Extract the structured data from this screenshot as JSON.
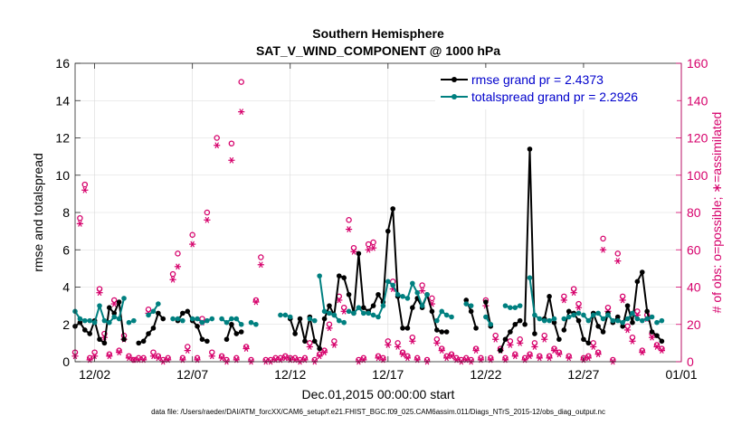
{
  "chart_data": {
    "type": "line",
    "title": [
      "Southern Hemisphere",
      "SAT_V_WIND_COMPONENT @ 1000 hPa"
    ],
    "xlabel": "Dec.01,2015 00:00:00 start",
    "ylabel": "rmse and totalspread",
    "y2label": "# of obs: o=possible; ∗=assimilated",
    "xlim": [
      0,
      31
    ],
    "ylim": [
      0,
      16
    ],
    "y2lim": [
      0,
      160
    ],
    "x_ticks": [
      1,
      6,
      11,
      16,
      21,
      26,
      31
    ],
    "x_tick_labels": [
      "12/02",
      "12/07",
      "12/12",
      "12/17",
      "12/22",
      "12/27",
      "01/01"
    ],
    "y_ticks": [
      0,
      2,
      4,
      6,
      8,
      10,
      12,
      14,
      16
    ],
    "y2_ticks": [
      0,
      20,
      40,
      60,
      80,
      100,
      120,
      140,
      160
    ],
    "grid": true,
    "legend_position": "top-right",
    "footnote": "data file: /Users/raeder/DAI/ATM_forcXX/CAM6_setup/f.e21.FHIST_BGC.f09_025.CAM6assim.011/Diags_NTrS_2015-12/obs_diag_output.nc",
    "series": [
      {
        "name": "rmse grand pr = 2.4373",
        "color": "#000000",
        "axis": "left",
        "segments": [
          {
            "x": [
              0.0,
              0.25,
              0.5,
              0.75,
              1.0,
              1.25,
              1.5,
              1.75,
              2.0,
              2.25,
              2.5
            ],
            "y": [
              1.9,
              2.1,
              1.7,
              1.5,
              2.2,
              1.2,
              1.0,
              2.9,
              2.6,
              3.2,
              1.2
            ]
          },
          {
            "x": [
              3.25,
              3.5,
              3.75,
              4.0,
              4.25,
              4.5
            ],
            "y": [
              1.0,
              1.1,
              1.5,
              1.8,
              2.6,
              2.3
            ]
          },
          {
            "x": [
              5.25,
              5.5,
              5.75,
              6.0,
              6.25,
              6.5,
              6.75
            ],
            "y": [
              2.2,
              2.6,
              2.7,
              2.2,
              1.9,
              1.2,
              1.1
            ]
          },
          {
            "x": [
              7.75,
              8.0,
              8.25,
              8.5
            ],
            "y": [
              1.2,
              2.0,
              1.5,
              1.6
            ]
          },
          {
            "x": [
              11.0,
              11.25,
              11.5,
              11.75,
              12.0,
              12.25,
              12.5,
              12.75,
              13.0,
              13.25,
              13.5,
              13.75,
              14.0,
              14.25,
              14.5,
              14.75,
              15.0,
              15.25,
              15.5,
              15.75,
              16.0,
              16.25,
              16.5,
              16.75,
              17.0,
              17.25,
              17.5,
              17.75,
              18.0,
              18.25,
              18.5,
              18.75,
              19.0
            ],
            "y": [
              2.3,
              1.5,
              2.3,
              1.1,
              2.4,
              1.1,
              0.7,
              2.3,
              3.0,
              2.5,
              4.6,
              4.5,
              3.6,
              2.6,
              5.8,
              2.9,
              2.7,
              3.0,
              3.6,
              3.2,
              7.0,
              8.2,
              3.5,
              1.8,
              1.8,
              2.9,
              3.4,
              2.9,
              3.6,
              2.7,
              1.7,
              1.6,
              1.6
            ]
          },
          {
            "x": [
              20.0,
              20.25,
              20.5
            ],
            "y": [
              3.3,
              2.7,
              1.8
            ]
          },
          {
            "x": [
              21.0,
              21.25
            ],
            "y": [
              3.2,
              1.9
            ]
          },
          {
            "x": [
              21.75,
              22.0,
              22.25,
              22.5,
              22.75
            ],
            "y": [
              0.6,
              1.2,
              1.6,
              2.0,
              2.2
            ]
          },
          {
            "x": [
              23.0,
              23.25,
              23.5
            ],
            "y": [
              2.0,
              11.4,
              1.5
            ]
          },
          {
            "x": [
              24.0,
              24.25,
              24.5,
              24.75
            ],
            "y": [
              2.3,
              3.5,
              2.1,
              1.2
            ]
          },
          {
            "x": [
              25.0,
              25.25,
              25.5,
              25.75,
              26.0,
              26.25,
              26.5,
              26.75,
              27.0,
              27.25,
              27.5,
              27.75,
              28.0,
              28.25,
              28.5,
              28.75,
              29.0,
              29.25,
              29.5,
              29.75,
              30.0
            ],
            "y": [
              1.7,
              2.7,
              2.6,
              2.2,
              1.2,
              1.0,
              2.6,
              1.9,
              1.6,
              2.6,
              2.1,
              2.4,
              1.9,
              3.0,
              2.1,
              4.3,
              4.8,
              2.7,
              1.6,
              1.4,
              1.1
            ]
          }
        ]
      },
      {
        "name": "totalspread grand pr = 2.2926",
        "color": "#008080",
        "axis": "left",
        "segments": [
          {
            "x": [
              0.0,
              0.25,
              0.5,
              0.75,
              1.0,
              1.25,
              1.5,
              1.75,
              2.0,
              2.25,
              2.5
            ],
            "y": [
              2.7,
              2.3,
              2.2,
              2.2,
              2.1,
              3.0,
              2.2,
              2.1,
              2.4,
              2.3,
              3.4
            ]
          },
          {
            "x": [
              2.75,
              3.0
            ],
            "y": [
              2.1,
              2.2
            ]
          },
          {
            "x": [
              3.75,
              4.0,
              4.25
            ],
            "y": [
              2.5,
              2.7,
              3.1
            ]
          },
          {
            "x": [
              5.0,
              5.25,
              5.5
            ],
            "y": [
              2.3,
              2.3,
              2.2
            ]
          },
          {
            "x": [
              6.0,
              6.25,
              6.5,
              6.75,
              7.0
            ],
            "y": [
              2.3,
              2.3,
              2.1,
              2.2,
              2.3
            ]
          },
          {
            "x": [
              7.5,
              7.75,
              8.0,
              8.25,
              8.5
            ],
            "y": [
              2.3,
              2.1,
              2.3,
              2.3,
              2.0
            ]
          },
          {
            "x": [
              9.0,
              9.25
            ],
            "y": [
              2.1,
              2.0
            ]
          },
          {
            "x": [
              10.5,
              10.75,
              11.0
            ],
            "y": [
              2.5,
              2.5,
              2.4
            ]
          },
          {
            "x": [
              12.0,
              12.25
            ],
            "y": [
              2.3,
              2.2
            ]
          },
          {
            "x": [
              12.5,
              12.75,
              13.0,
              13.25,
              13.5,
              13.75
            ],
            "y": [
              4.6,
              2.7,
              2.6,
              2.5,
              2.2,
              2.1
            ]
          },
          {
            "x": [
              14.0,
              14.25,
              14.5,
              14.75,
              15.0,
              15.25,
              15.5,
              15.75,
              16.0,
              16.25,
              16.5,
              16.75,
              17.0,
              17.25,
              17.5,
              17.75,
              18.0
            ],
            "y": [
              2.7,
              2.6,
              2.9,
              2.6,
              2.6,
              2.5,
              2.4,
              3.0,
              4.3,
              4.1,
              3.6,
              3.5,
              3.4,
              4.2,
              3.7,
              3.0,
              3.6
            ]
          },
          {
            "x": [
              18.5,
              18.75,
              19.0,
              19.25
            ],
            "y": [
              2.2,
              2.7,
              2.5,
              2.4
            ]
          },
          {
            "x": [
              20.0,
              20.25
            ],
            "y": [
              3.1,
              3.0
            ]
          },
          {
            "x": [
              21.0,
              21.25
            ],
            "y": [
              2.4,
              2.0
            ]
          },
          {
            "x": [
              22.0,
              22.25,
              22.5,
              22.75
            ],
            "y": [
              3.0,
              2.9,
              2.9,
              3.0
            ]
          },
          {
            "x": [
              23.25,
              23.5,
              23.75,
              24.0
            ],
            "y": [
              4.5,
              2.5,
              2.3,
              2.2
            ]
          },
          {
            "x": [
              24.25,
              24.5
            ],
            "y": [
              2.2,
              2.3
            ]
          },
          {
            "x": [
              25.0,
              25.25,
              25.5,
              25.75
            ],
            "y": [
              2.3,
              2.4,
              2.5,
              2.6
            ]
          },
          {
            "x": [
              26.0,
              26.25,
              26.5,
              26.75,
              27.0,
              27.25,
              27.5,
              27.75,
              28.0,
              28.25,
              28.5,
              28.75,
              29.0,
              29.25,
              29.5
            ],
            "y": [
              2.5,
              2.2,
              2.5,
              2.6,
              2.3,
              2.5,
              2.2,
              2.2,
              2.1,
              2.3,
              2.6,
              2.3,
              2.2,
              2.3,
              2.4
            ]
          },
          {
            "x": [
              29.75,
              30.0
            ],
            "y": [
              2.1,
              2.2
            ]
          }
        ]
      },
      {
        "name": "obs possible",
        "color": "#d6006b",
        "axis": "right",
        "marker": "circle",
        "x": [
          0.0,
          0.25,
          0.5,
          0.75,
          1.0,
          1.25,
          1.5,
          1.75,
          2.0,
          2.25,
          2.5,
          2.75,
          3.0,
          3.25,
          3.5,
          3.75,
          4.0,
          4.25,
          4.5,
          4.75,
          5.0,
          5.25,
          5.5,
          5.75,
          6.0,
          6.25,
          6.5,
          6.75,
          7.0,
          7.25,
          7.5,
          7.75,
          8.0,
          8.25,
          8.5,
          8.75,
          9.0,
          9.25,
          9.5,
          9.75,
          10.0,
          10.25,
          10.5,
          10.75,
          11.0,
          11.25,
          11.5,
          11.75,
          12.0,
          12.25,
          12.5,
          12.75,
          13.0,
          13.25,
          13.5,
          13.75,
          14.0,
          14.25,
          14.5,
          14.75,
          15.0,
          15.25,
          15.5,
          15.75,
          16.0,
          16.25,
          16.5,
          16.75,
          17.0,
          17.25,
          17.5,
          17.75,
          18.0,
          18.25,
          18.5,
          18.75,
          19.0,
          19.25,
          19.5,
          19.75,
          20.0,
          20.25,
          20.5,
          20.75,
          21.0,
          21.25,
          21.5,
          21.75,
          22.0,
          22.25,
          22.5,
          22.75,
          23.0,
          23.25,
          23.5,
          23.75,
          24.0,
          24.25,
          24.5,
          24.75,
          25.0,
          25.25,
          25.5,
          25.75,
          26.0,
          26.25,
          26.5,
          26.75,
          27.0,
          27.25,
          27.5,
          27.75,
          28.0,
          28.25,
          28.5,
          28.75,
          29.0,
          29.25,
          29.5,
          29.75,
          30.0
        ],
        "values": [
          5,
          77,
          95,
          2,
          5,
          39,
          15,
          4,
          33,
          6,
          14,
          3,
          1,
          2,
          2,
          28,
          5,
          3,
          1,
          2,
          47,
          58,
          2,
          8,
          68,
          2,
          23,
          80,
          5,
          120,
          3,
          1,
          117,
          2,
          150,
          8,
          1,
          33,
          56,
          1,
          1,
          2,
          2,
          3,
          2,
          2,
          1,
          2,
          10,
          1,
          4,
          6,
          20,
          11,
          35,
          29,
          76,
          61,
          1,
          2,
          63,
          64,
          3,
          2,
          11,
          43,
          10,
          5,
          3,
          13,
          2,
          41,
          1,
          34,
          12,
          7,
          3,
          4,
          2,
          1,
          2,
          1,
          7,
          2,
          33,
          2,
          14,
          7,
          2,
          11,
          4,
          12,
          2,
          4,
          10,
          3,
          14,
          3,
          7,
          5,
          35,
          3,
          39,
          31,
          2,
          3,
          10,
          5,
          66,
          29,
          1,
          58,
          35,
          19,
          13,
          27,
          6,
          25,
          15,
          9,
          7
        ]
      },
      {
        "name": "obs assimilated",
        "color": "#d6006b",
        "axis": "right",
        "marker": "asterisk",
        "x": [
          0.0,
          0.25,
          0.5,
          0.75,
          1.0,
          1.25,
          1.5,
          1.75,
          2.0,
          2.25,
          2.5,
          2.75,
          3.0,
          3.25,
          3.5,
          3.75,
          4.0,
          4.25,
          4.5,
          4.75,
          5.0,
          5.25,
          5.5,
          5.75,
          6.0,
          6.25,
          6.5,
          6.75,
          7.0,
          7.25,
          7.5,
          7.75,
          8.0,
          8.25,
          8.5,
          8.75,
          9.0,
          9.25,
          9.5,
          9.75,
          10.0,
          10.25,
          10.5,
          10.75,
          11.0,
          11.25,
          11.5,
          11.75,
          12.0,
          12.25,
          12.5,
          12.75,
          13.0,
          13.25,
          13.5,
          13.75,
          14.0,
          14.25,
          14.5,
          14.75,
          15.0,
          15.25,
          15.5,
          15.75,
          16.0,
          16.25,
          16.5,
          16.75,
          17.0,
          17.25,
          17.5,
          17.75,
          18.0,
          18.25,
          18.5,
          18.75,
          19.0,
          19.25,
          19.5,
          19.75,
          20.0,
          20.25,
          20.5,
          20.75,
          21.0,
          21.25,
          21.5,
          21.75,
          22.0,
          22.25,
          22.5,
          22.75,
          23.0,
          23.25,
          23.5,
          23.75,
          24.0,
          24.25,
          24.5,
          24.75,
          25.0,
          25.25,
          25.5,
          25.75,
          26.0,
          26.25,
          26.5,
          26.75,
          27.0,
          27.25,
          27.5,
          27.75,
          28.0,
          28.25,
          28.5,
          28.75,
          29.0,
          29.25,
          29.5,
          29.75,
          30.0
        ],
        "values": [
          3,
          74,
          92,
          1,
          3,
          37,
          13,
          3,
          31,
          5,
          12,
          2,
          1,
          1,
          1,
          26,
          3,
          2,
          0,
          1,
          44,
          51,
          1,
          6,
          63,
          1,
          21,
          76,
          3,
          116,
          2,
          0,
          108,
          1,
          134,
          7,
          0,
          32,
          52,
          0,
          0,
          1,
          1,
          2,
          1,
          1,
          0,
          1,
          8,
          0,
          3,
          5,
          18,
          9,
          33,
          27,
          71,
          59,
          0,
          1,
          60,
          61,
          2,
          1,
          9,
          39,
          8,
          4,
          2,
          11,
          1,
          38,
          0,
          31,
          10,
          6,
          2,
          3,
          1,
          0,
          1,
          0,
          6,
          1,
          30,
          1,
          12,
          6,
          1,
          9,
          3,
          10,
          1,
          3,
          8,
          2,
          12,
          2,
          6,
          4,
          33,
          2,
          37,
          29,
          1,
          2,
          8,
          4,
          60,
          27,
          0,
          54,
          33,
          17,
          11,
          25,
          5,
          23,
          13,
          8,
          6
        ]
      }
    ]
  }
}
